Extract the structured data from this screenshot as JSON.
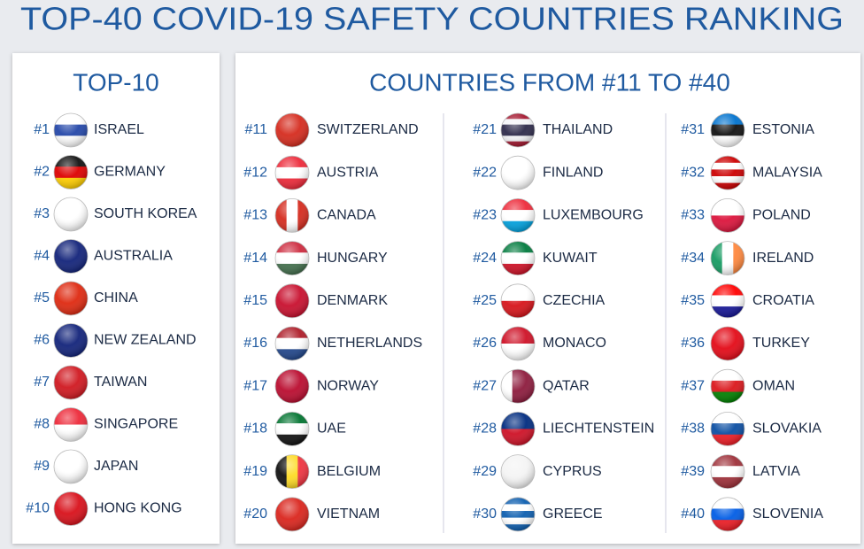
{
  "title": "TOP-40 COVID-19 SAFETY COUNTRIES RANKING",
  "top10": {
    "heading": "TOP-10",
    "items": [
      {
        "rank": "#1",
        "country": "ISRAEL"
      },
      {
        "rank": "#2",
        "country": "GERMANY"
      },
      {
        "rank": "#3",
        "country": "SOUTH KOREA"
      },
      {
        "rank": "#4",
        "country": "AUSTRALIA"
      },
      {
        "rank": "#5",
        "country": "CHINA"
      },
      {
        "rank": "#6",
        "country": "NEW ZEALAND"
      },
      {
        "rank": "#7",
        "country": "TAIWAN"
      },
      {
        "rank": "#8",
        "country": "SINGAPORE"
      },
      {
        "rank": "#9",
        "country": "JAPAN"
      },
      {
        "rank": "#10",
        "country": "HONG KONG"
      }
    ]
  },
  "others": {
    "heading": "COUNTRIES FROM #11 TO #40",
    "items": [
      {
        "rank": "#11",
        "country": "SWITZERLAND"
      },
      {
        "rank": "#12",
        "country": "AUSTRIA"
      },
      {
        "rank": "#13",
        "country": "CANADA"
      },
      {
        "rank": "#14",
        "country": "HUNGARY"
      },
      {
        "rank": "#15",
        "country": "DENMARK"
      },
      {
        "rank": "#16",
        "country": "NETHERLANDS"
      },
      {
        "rank": "#17",
        "country": "NORWAY"
      },
      {
        "rank": "#18",
        "country": "UAE"
      },
      {
        "rank": "#19",
        "country": "BELGIUM"
      },
      {
        "rank": "#20",
        "country": "VIETNAM"
      },
      {
        "rank": "#21",
        "country": "THAILAND"
      },
      {
        "rank": "#22",
        "country": "FINLAND"
      },
      {
        "rank": "#23",
        "country": "LUXEMBOURG"
      },
      {
        "rank": "#24",
        "country": "KUWAIT"
      },
      {
        "rank": "#25",
        "country": "CZECHIA"
      },
      {
        "rank": "#26",
        "country": "MONACO"
      },
      {
        "rank": "#27",
        "country": "QATAR"
      },
      {
        "rank": "#28",
        "country": "LIECHTENSTEIN"
      },
      {
        "rank": "#29",
        "country": "CYPRUS"
      },
      {
        "rank": "#30",
        "country": "GREECE"
      },
      {
        "rank": "#31",
        "country": "ESTONIA"
      },
      {
        "rank": "#32",
        "country": "MALAYSIA"
      },
      {
        "rank": "#33",
        "country": "POLAND"
      },
      {
        "rank": "#34",
        "country": "IRELAND"
      },
      {
        "rank": "#35",
        "country": "CROATIA"
      },
      {
        "rank": "#36",
        "country": "TURKEY"
      },
      {
        "rank": "#37",
        "country": "OMAN"
      },
      {
        "rank": "#38",
        "country": "SLOVAKIA"
      },
      {
        "rank": "#39",
        "country": "LATVIA"
      },
      {
        "rank": "#40",
        "country": "SLOVENIA"
      }
    ]
  }
}
